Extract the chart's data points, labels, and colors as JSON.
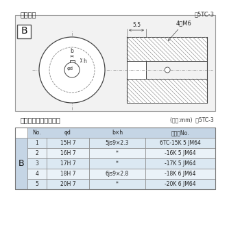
{
  "title_section": "軸穴形状",
  "fig_label": "囵5TC-3",
  "table_title": "軸穴形状コード一覧表",
  "table_unit": "(単位:mm)  表5TC-3",
  "header_row": [
    "No.",
    "φd",
    "b×h",
    "コードNo."
  ],
  "b_label": "B",
  "rows": [
    [
      "1",
      "15H 7",
      "5js9×2.3",
      "6TC-15K 5 JM64"
    ],
    [
      "2",
      "16H 7",
      "*",
      "-16K 5 JM64"
    ],
    [
      "3",
      "17H 7",
      "*",
      "-17K 5 JM64"
    ],
    [
      "4",
      "18H 7",
      "6js9×2.8",
      "-18K 6 JM64"
    ],
    [
      "5",
      "20H 7",
      "*",
      "-20K 6 JM64"
    ]
  ],
  "line_color": "#444444",
  "dim_55": "5.5",
  "dim_4M6": "4－M6",
  "dim_b": "b",
  "dim_h": "h",
  "phi_d": "φd"
}
